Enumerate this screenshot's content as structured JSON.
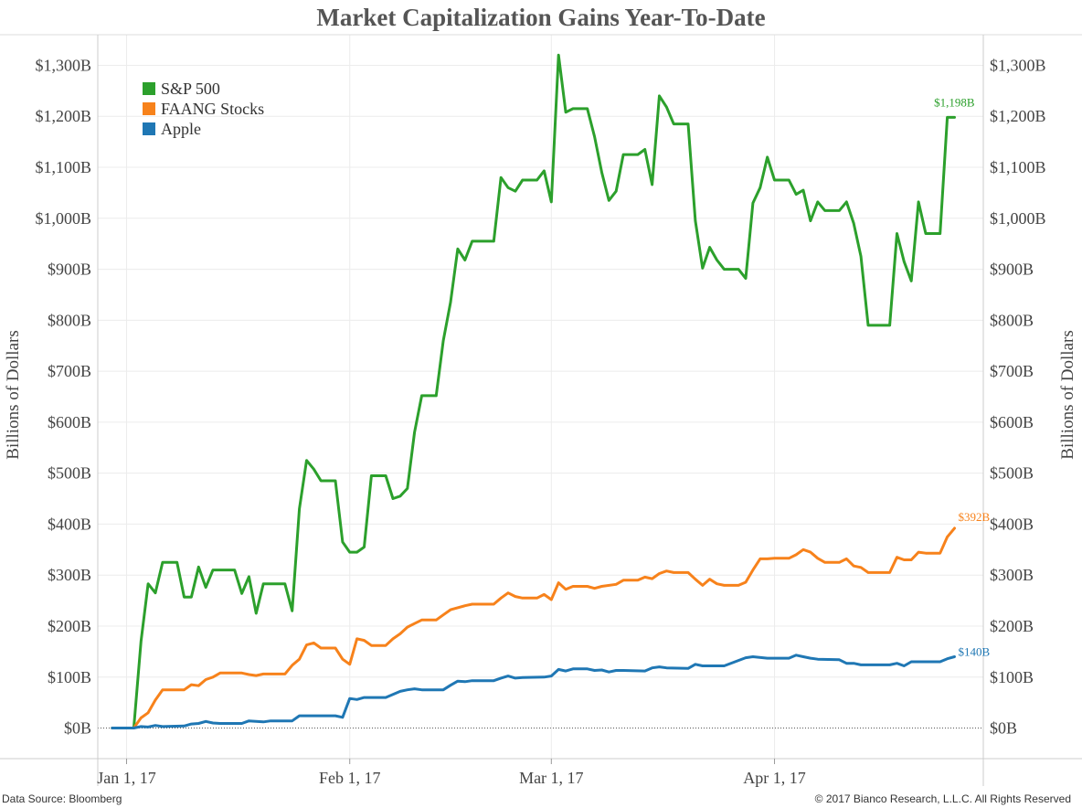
{
  "chart_data": {
    "type": "line",
    "title": "Market Capitalization Gains Year-To-Date",
    "ylabel_left": "Billions of Dollars",
    "ylabel_right": "Billions of Dollars",
    "ylim": [
      -60,
      1360
    ],
    "y_ticks": [
      0,
      100,
      200,
      300,
      400,
      500,
      600,
      700,
      800,
      900,
      1000,
      1100,
      1200,
      1300
    ],
    "y_tick_labels": [
      "$0B",
      "$100B",
      "$200B",
      "$300B",
      "$400B",
      "$500B",
      "$600B",
      "$700B",
      "$800B",
      "$900B",
      "$1,000B",
      "$1,100B",
      "$1,200B",
      "$1,300B"
    ],
    "x_domain": [
      "2016-12-28",
      "2017-04-30"
    ],
    "x_ticks": [
      "2017-01-01",
      "2017-02-01",
      "2017-03-01",
      "2017-04-01"
    ],
    "x_tick_labels": [
      "Jan 1, 17",
      "Feb 1, 17",
      "Mar 1, 17",
      "Apr 1, 17"
    ],
    "grid": true,
    "legend_position": "top-left",
    "series": [
      {
        "name": "S&P 500",
        "color": "#2ca02c",
        "end_label": "$1,198B",
        "points": [
          [
            "2016-12-30",
            0
          ],
          [
            "2017-01-01",
            0
          ],
          [
            "2017-01-02",
            0
          ],
          [
            "2017-01-03",
            170
          ],
          [
            "2017-01-04",
            283
          ],
          [
            "2017-01-05",
            265
          ],
          [
            "2017-01-06",
            325
          ],
          [
            "2017-01-08",
            325
          ],
          [
            "2017-01-09",
            257
          ],
          [
            "2017-01-10",
            257
          ],
          [
            "2017-01-11",
            316
          ],
          [
            "2017-01-12",
            276
          ],
          [
            "2017-01-13",
            310
          ],
          [
            "2017-01-16",
            310
          ],
          [
            "2017-01-17",
            264
          ],
          [
            "2017-01-18",
            297
          ],
          [
            "2017-01-19",
            225
          ],
          [
            "2017-01-20",
            283
          ],
          [
            "2017-01-23",
            283
          ],
          [
            "2017-01-24",
            230
          ],
          [
            "2017-01-25",
            430
          ],
          [
            "2017-01-26",
            525
          ],
          [
            "2017-01-27",
            508
          ],
          [
            "2017-01-28",
            485
          ],
          [
            "2017-01-30",
            485
          ],
          [
            "2017-01-31",
            365
          ],
          [
            "2017-02-01",
            345
          ],
          [
            "2017-02-02",
            345
          ],
          [
            "2017-02-03",
            355
          ],
          [
            "2017-02-04",
            495
          ],
          [
            "2017-02-06",
            495
          ],
          [
            "2017-02-07",
            450
          ],
          [
            "2017-02-08",
            455
          ],
          [
            "2017-02-09",
            470
          ],
          [
            "2017-02-10",
            580
          ],
          [
            "2017-02-11",
            652
          ],
          [
            "2017-02-13",
            652
          ],
          [
            "2017-02-14",
            760
          ],
          [
            "2017-02-15",
            835
          ],
          [
            "2017-02-16",
            940
          ],
          [
            "2017-02-17",
            918
          ],
          [
            "2017-02-18",
            955
          ],
          [
            "2017-02-21",
            955
          ],
          [
            "2017-02-22",
            1080
          ],
          [
            "2017-02-23",
            1060
          ],
          [
            "2017-02-24",
            1053
          ],
          [
            "2017-02-25",
            1075
          ],
          [
            "2017-02-27",
            1075
          ],
          [
            "2017-02-28",
            1093
          ],
          [
            "2017-03-01",
            1032
          ],
          [
            "2017-03-02",
            1320
          ],
          [
            "2017-03-03",
            1208
          ],
          [
            "2017-03-04",
            1215
          ],
          [
            "2017-03-06",
            1215
          ],
          [
            "2017-03-07",
            1160
          ],
          [
            "2017-03-08",
            1090
          ],
          [
            "2017-03-09",
            1035
          ],
          [
            "2017-03-10",
            1053
          ],
          [
            "2017-03-11",
            1125
          ],
          [
            "2017-03-13",
            1125
          ],
          [
            "2017-03-14",
            1135
          ],
          [
            "2017-03-15",
            1066
          ],
          [
            "2017-03-16",
            1240
          ],
          [
            "2017-03-17",
            1218
          ],
          [
            "2017-03-18",
            1185
          ],
          [
            "2017-03-20",
            1185
          ],
          [
            "2017-03-21",
            995
          ],
          [
            "2017-03-22",
            902
          ],
          [
            "2017-03-23",
            943
          ],
          [
            "2017-03-24",
            918
          ],
          [
            "2017-03-25",
            900
          ],
          [
            "2017-03-27",
            900
          ],
          [
            "2017-03-28",
            882
          ],
          [
            "2017-03-29",
            1030
          ],
          [
            "2017-03-30",
            1060
          ],
          [
            "2017-03-31",
            1120
          ],
          [
            "2017-04-01",
            1075
          ],
          [
            "2017-04-03",
            1075
          ],
          [
            "2017-04-04",
            1047
          ],
          [
            "2017-04-05",
            1055
          ],
          [
            "2017-04-06",
            995
          ],
          [
            "2017-04-07",
            1032
          ],
          [
            "2017-04-08",
            1015
          ],
          [
            "2017-04-10",
            1015
          ],
          [
            "2017-04-11",
            1032
          ],
          [
            "2017-04-12",
            990
          ],
          [
            "2017-04-13",
            925
          ],
          [
            "2017-04-14",
            790
          ],
          [
            "2017-04-17",
            790
          ],
          [
            "2017-04-18",
            970
          ],
          [
            "2017-04-19",
            915
          ],
          [
            "2017-04-20",
            877
          ],
          [
            "2017-04-21",
            1032
          ],
          [
            "2017-04-22",
            970
          ],
          [
            "2017-04-24",
            970
          ],
          [
            "2017-04-25",
            1198
          ],
          [
            "2017-04-26",
            1198
          ]
        ]
      },
      {
        "name": "FAANG Stocks",
        "color": "#f7821b",
        "end_label": "$392B",
        "points": [
          [
            "2016-12-30",
            0
          ],
          [
            "2017-01-02",
            0
          ],
          [
            "2017-01-03",
            20
          ],
          [
            "2017-01-04",
            30
          ],
          [
            "2017-01-05",
            55
          ],
          [
            "2017-01-06",
            75
          ],
          [
            "2017-01-09",
            75
          ],
          [
            "2017-01-10",
            85
          ],
          [
            "2017-01-11",
            83
          ],
          [
            "2017-01-12",
            95
          ],
          [
            "2017-01-13",
            100
          ],
          [
            "2017-01-14",
            108
          ],
          [
            "2017-01-17",
            108
          ],
          [
            "2017-01-18",
            105
          ],
          [
            "2017-01-19",
            103
          ],
          [
            "2017-01-20",
            106
          ],
          [
            "2017-01-23",
            106
          ],
          [
            "2017-01-24",
            123
          ],
          [
            "2017-01-25",
            135
          ],
          [
            "2017-01-26",
            163
          ],
          [
            "2017-01-27",
            167
          ],
          [
            "2017-01-28",
            157
          ],
          [
            "2017-01-30",
            157
          ],
          [
            "2017-01-31",
            135
          ],
          [
            "2017-02-01",
            125
          ],
          [
            "2017-02-02",
            175
          ],
          [
            "2017-02-03",
            172
          ],
          [
            "2017-02-04",
            162
          ],
          [
            "2017-02-06",
            162
          ],
          [
            "2017-02-07",
            175
          ],
          [
            "2017-02-08",
            185
          ],
          [
            "2017-02-09",
            198
          ],
          [
            "2017-02-10",
            205
          ],
          [
            "2017-02-11",
            212
          ],
          [
            "2017-02-13",
            212
          ],
          [
            "2017-02-14",
            222
          ],
          [
            "2017-02-15",
            232
          ],
          [
            "2017-02-17",
            240
          ],
          [
            "2017-02-18",
            243
          ],
          [
            "2017-02-21",
            243
          ],
          [
            "2017-02-22",
            255
          ],
          [
            "2017-02-23",
            265
          ],
          [
            "2017-02-24",
            258
          ],
          [
            "2017-02-25",
            255
          ],
          [
            "2017-02-27",
            255
          ],
          [
            "2017-02-28",
            262
          ],
          [
            "2017-03-01",
            252
          ],
          [
            "2017-03-02",
            285
          ],
          [
            "2017-03-03",
            272
          ],
          [
            "2017-03-04",
            278
          ],
          [
            "2017-03-06",
            278
          ],
          [
            "2017-03-07",
            274
          ],
          [
            "2017-03-08",
            278
          ],
          [
            "2017-03-10",
            282
          ],
          [
            "2017-03-11",
            290
          ],
          [
            "2017-03-13",
            290
          ],
          [
            "2017-03-14",
            296
          ],
          [
            "2017-03-15",
            293
          ],
          [
            "2017-03-16",
            303
          ],
          [
            "2017-03-17",
            308
          ],
          [
            "2017-03-18",
            305
          ],
          [
            "2017-03-20",
            305
          ],
          [
            "2017-03-21",
            292
          ],
          [
            "2017-03-22",
            280
          ],
          [
            "2017-03-23",
            292
          ],
          [
            "2017-03-24",
            283
          ],
          [
            "2017-03-25",
            280
          ],
          [
            "2017-03-27",
            280
          ],
          [
            "2017-03-28",
            286
          ],
          [
            "2017-03-29",
            310
          ],
          [
            "2017-03-30",
            332
          ],
          [
            "2017-03-31",
            332
          ],
          [
            "2017-04-01",
            333
          ],
          [
            "2017-04-03",
            333
          ],
          [
            "2017-04-04",
            340
          ],
          [
            "2017-04-05",
            350
          ],
          [
            "2017-04-06",
            345
          ],
          [
            "2017-04-07",
            333
          ],
          [
            "2017-04-08",
            325
          ],
          [
            "2017-04-10",
            325
          ],
          [
            "2017-04-11",
            332
          ],
          [
            "2017-04-12",
            318
          ],
          [
            "2017-04-13",
            315
          ],
          [
            "2017-04-14",
            305
          ],
          [
            "2017-04-17",
            305
          ],
          [
            "2017-04-18",
            335
          ],
          [
            "2017-04-19",
            330
          ],
          [
            "2017-04-20",
            330
          ],
          [
            "2017-04-21",
            345
          ],
          [
            "2017-04-22",
            343
          ],
          [
            "2017-04-24",
            343
          ],
          [
            "2017-04-25",
            375
          ],
          [
            "2017-04-26",
            392
          ]
        ]
      },
      {
        "name": "Apple",
        "color": "#1f77b4",
        "end_label": "$140B",
        "points": [
          [
            "2016-12-30",
            0
          ],
          [
            "2017-01-02",
            0
          ],
          [
            "2017-01-03",
            3
          ],
          [
            "2017-01-04",
            2
          ],
          [
            "2017-01-05",
            5
          ],
          [
            "2017-01-06",
            3
          ],
          [
            "2017-01-09",
            4
          ],
          [
            "2017-01-10",
            8
          ],
          [
            "2017-01-11",
            9
          ],
          [
            "2017-01-12",
            13
          ],
          [
            "2017-01-13",
            10
          ],
          [
            "2017-01-14",
            9
          ],
          [
            "2017-01-17",
            9
          ],
          [
            "2017-01-18",
            14
          ],
          [
            "2017-01-19",
            13
          ],
          [
            "2017-01-20",
            12
          ],
          [
            "2017-01-21",
            14
          ],
          [
            "2017-01-24",
            14
          ],
          [
            "2017-01-25",
            24
          ],
          [
            "2017-01-26",
            24
          ],
          [
            "2017-01-30",
            24
          ],
          [
            "2017-01-31",
            21
          ],
          [
            "2017-02-01",
            58
          ],
          [
            "2017-02-02",
            56
          ],
          [
            "2017-02-03",
            60
          ],
          [
            "2017-02-06",
            60
          ],
          [
            "2017-02-07",
            66
          ],
          [
            "2017-02-08",
            72
          ],
          [
            "2017-02-09",
            75
          ],
          [
            "2017-02-10",
            77
          ],
          [
            "2017-02-11",
            75
          ],
          [
            "2017-02-14",
            75
          ],
          [
            "2017-02-15",
            84
          ],
          [
            "2017-02-16",
            92
          ],
          [
            "2017-02-17",
            91
          ],
          [
            "2017-02-18",
            93
          ],
          [
            "2017-02-21",
            93
          ],
          [
            "2017-02-22",
            98
          ],
          [
            "2017-02-23",
            102
          ],
          [
            "2017-02-24",
            98
          ],
          [
            "2017-02-25",
            99
          ],
          [
            "2017-02-28",
            100
          ],
          [
            "2017-03-01",
            102
          ],
          [
            "2017-03-02",
            115
          ],
          [
            "2017-03-03",
            112
          ],
          [
            "2017-03-04",
            116
          ],
          [
            "2017-03-06",
            116
          ],
          [
            "2017-03-07",
            113
          ],
          [
            "2017-03-08",
            114
          ],
          [
            "2017-03-09",
            110
          ],
          [
            "2017-03-10",
            113
          ],
          [
            "2017-03-11",
            113
          ],
          [
            "2017-03-14",
            112
          ],
          [
            "2017-03-15",
            118
          ],
          [
            "2017-03-16",
            120
          ],
          [
            "2017-03-17",
            118
          ],
          [
            "2017-03-20",
            117
          ],
          [
            "2017-03-21",
            125
          ],
          [
            "2017-03-22",
            122
          ],
          [
            "2017-03-24",
            122
          ],
          [
            "2017-03-25",
            122
          ],
          [
            "2017-03-28",
            138
          ],
          [
            "2017-03-29",
            140
          ],
          [
            "2017-03-31",
            137
          ],
          [
            "2017-04-03",
            137
          ],
          [
            "2017-04-04",
            143
          ],
          [
            "2017-04-05",
            140
          ],
          [
            "2017-04-06",
            137
          ],
          [
            "2017-04-07",
            135
          ],
          [
            "2017-04-10",
            134
          ],
          [
            "2017-04-11",
            127
          ],
          [
            "2017-04-12",
            127
          ],
          [
            "2017-04-13",
            124
          ],
          [
            "2017-04-17",
            124
          ],
          [
            "2017-04-18",
            127
          ],
          [
            "2017-04-19",
            122
          ],
          [
            "2017-04-20",
            130
          ],
          [
            "2017-04-24",
            130
          ],
          [
            "2017-04-25",
            136
          ],
          [
            "2017-04-26",
            140
          ]
        ]
      }
    ]
  },
  "footer": {
    "source": "Data Source: Bloomberg",
    "copyright": "© 2017 Bianco Research, L.L.C. All Rights Reserved"
  }
}
